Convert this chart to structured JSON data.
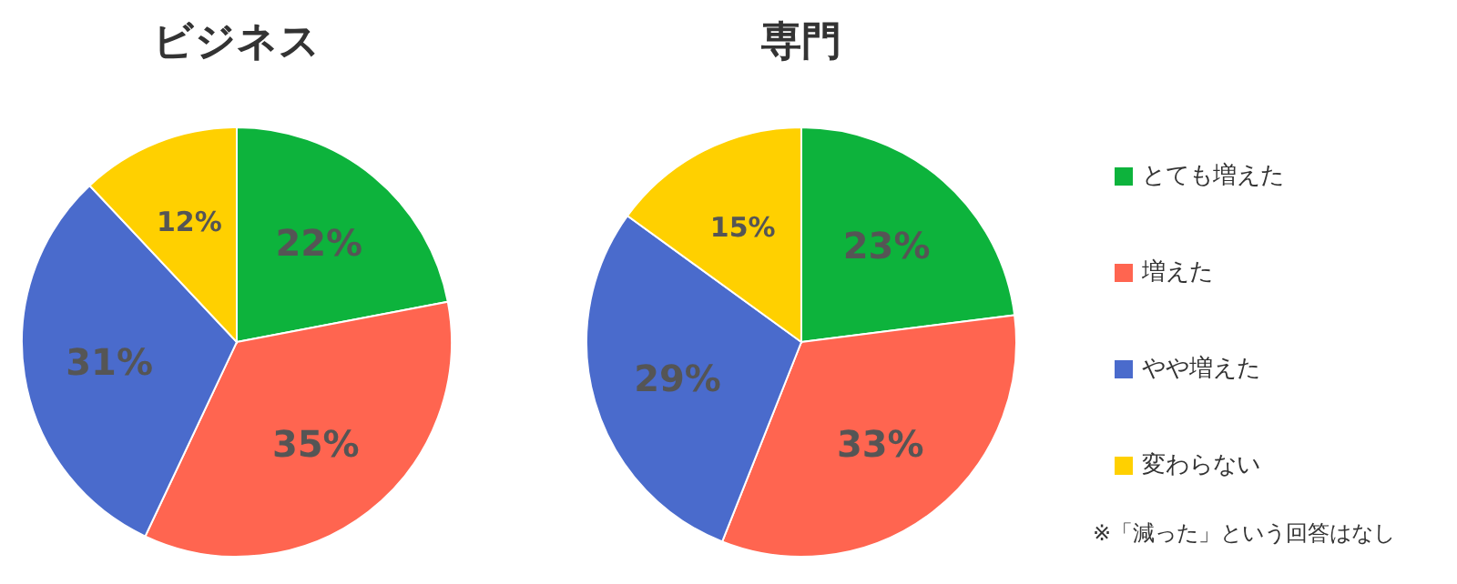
{
  "chart_data": [
    {
      "type": "pie",
      "title": "ビジネス",
      "categories": [
        null,
        null,
        null,
        null
      ],
      "values": [
        22,
        35,
        31,
        12
      ],
      "value_labels": [
        "22%",
        "35%",
        "31%",
        "12%"
      ],
      "colors": [
        "#0db33c",
        "#ff6550",
        "#4a6bcc",
        "#ffd000"
      ]
    },
    {
      "type": "pie",
      "title": "専門",
      "categories": [
        "とても増えた",
        "増えた",
        "やや増えた",
        "変わらない"
      ],
      "values": [
        23,
        33,
        29,
        15
      ],
      "value_labels": [
        "23%",
        "33%",
        "29%",
        "15%"
      ],
      "colors": [
        "#0db33c",
        "#ff6550",
        "#4a6bcc",
        "#ffd000"
      ],
      "legend": "right",
      "annotations": [
        "※「減った」という回答はなし"
      ]
    }
  ]
}
